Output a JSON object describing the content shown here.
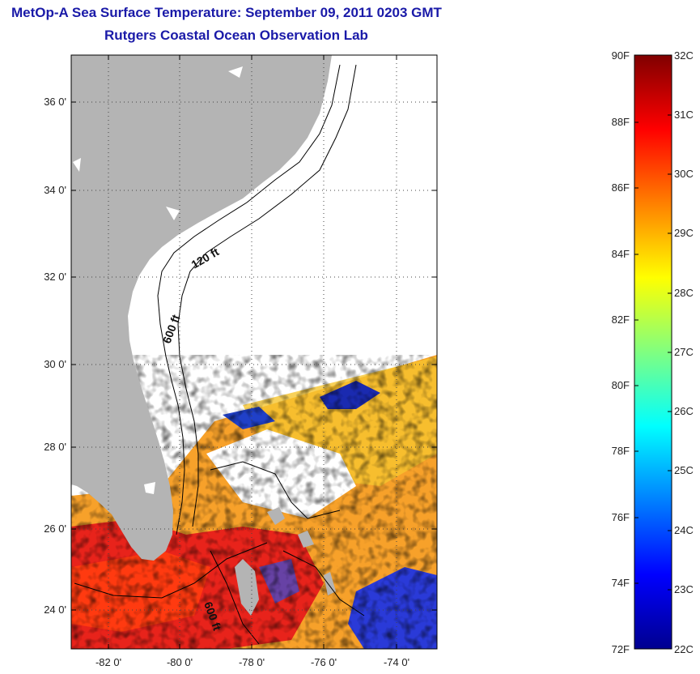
{
  "header": {
    "title_line1": "MetOp-A Sea Surface Temperature:  September 09, 2011 0203 GMT",
    "title_line2": "Rutgers Coastal Ocean Observation Lab"
  },
  "map": {
    "lat_labels": [
      "36 0'",
      "34 0'",
      "32 0'",
      "30 0'",
      "28 0'",
      "26 0'",
      "24 0'"
    ],
    "lon_labels": [
      "-82 0'",
      "-80 0'",
      "-78 0'",
      "-76 0'",
      "-74 0'"
    ],
    "contour_labels": {
      "c120": "120 ft",
      "c600a": "600 ft",
      "c600b": "600 ft"
    },
    "colors": {
      "land": "#b4b4b4",
      "contour": "#000000",
      "no_data": "#ffffff"
    }
  },
  "colorbar": {
    "f_labels": [
      "90F",
      "88F",
      "86F",
      "84F",
      "82F",
      "80F",
      "78F",
      "76F",
      "74F",
      "72F"
    ],
    "c_labels": [
      "32C",
      "31C",
      "30C",
      "29C",
      "28C",
      "27C",
      "26C",
      "25C",
      "24C",
      "23C",
      "22C"
    ],
    "gradient_stops": [
      "#00008f",
      "#0000ff",
      "#0080ff",
      "#00ffff",
      "#80ff80",
      "#ffff00",
      "#ff8000",
      "#ff0000",
      "#800000"
    ]
  }
}
